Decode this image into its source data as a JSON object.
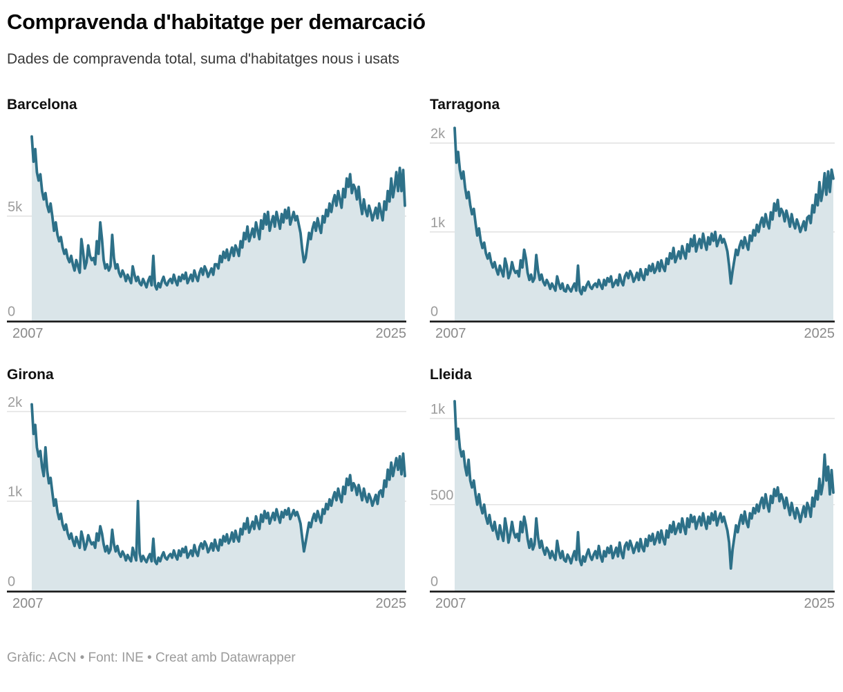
{
  "header": {
    "title": "Compravenda d'habitatge per demarcació",
    "subtitle": "Dades de compravenda total, suma d'habitatges nous i usats"
  },
  "footer": {
    "text": "Gràfic: ACN • Font: INE • Creat amb Datawrapper"
  },
  "colors": {
    "line": "#2d7088",
    "fill": "#dae5e9",
    "grid": "#dedede",
    "baseline": "#161616",
    "tick_label": "#9c9c9c",
    "x_label": "#8a8a8a"
  },
  "chart_data": [
    {
      "type": "area",
      "title": "Barcelona",
      "frequency": "monthly",
      "x_start": "2007-01",
      "x_end": "2025-03",
      "x_tick_labels": [
        "2007",
        "2025"
      ],
      "ylim": [
        0,
        9550
      ],
      "yticks": [
        {
          "value": 0,
          "label": "0"
        },
        {
          "value": 5000,
          "label": "5k"
        }
      ],
      "values": [
        8800,
        7600,
        8200,
        7100,
        6700,
        7000,
        6200,
        5800,
        6100,
        5500,
        5200,
        5600,
        5000,
        4300,
        4700,
        4100,
        3800,
        4000,
        3500,
        3200,
        3400,
        3000,
        2800,
        3100,
        2700,
        2400,
        2900,
        2600,
        2300,
        3900,
        3300,
        2500,
        2800,
        3600,
        3100,
        2900,
        3000,
        2700,
        3800,
        3200,
        4700,
        3900,
        2900,
        2500,
        2700,
        2400,
        2600,
        4100,
        3000,
        2500,
        2700,
        2300,
        2100,
        2400,
        2200,
        1900,
        2200,
        2000,
        1800,
        2600,
        2200,
        1900,
        2100,
        1800,
        1700,
        2000,
        1800,
        1600,
        1900,
        2100,
        1700,
        3100,
        1700,
        1500,
        1800,
        1600,
        1900,
        2100,
        1800,
        1700,
        1900,
        2000,
        1800,
        2200,
        1900,
        1700,
        2100,
        1900,
        2200,
        2000,
        2300,
        1800,
        2000,
        2200,
        1900,
        2400,
        2100,
        1900,
        2300,
        2500,
        2200,
        2600,
        2400,
        2100,
        2300,
        2500,
        2200,
        2700,
        2700,
        2500,
        3100,
        2800,
        3300,
        3000,
        3400,
        2900,
        3200,
        3500,
        3100,
        3600,
        3400,
        3100,
        3800,
        3500,
        4200,
        3900,
        4500,
        3800,
        4100,
        4400,
        4000,
        4700,
        4300,
        3900,
        4800,
        4400,
        5100,
        4600,
        5200,
        4300,
        4700,
        5000,
        4500,
        5200,
        4800,
        4400,
        5100,
        4700,
        5300,
        4900,
        5400,
        4600,
        4900,
        5200,
        4800,
        5000,
        4600,
        4200,
        3400,
        2800,
        3000,
        3600,
        4200,
        3900,
        4400,
        4700,
        4300,
        4900,
        4500,
        4200,
        5000,
        4700,
        5300,
        5000,
        5600,
        5200,
        5700,
        6000,
        5500,
        6200,
        5800,
        5400,
        6300,
        5900,
        6800,
        6400,
        7000,
        6100,
        6500,
        6300,
        5800,
        6400,
        5600,
        5100,
        5800,
        5300,
        5000,
        5500,
        5200,
        4800,
        5100,
        5400,
        4900,
        5600,
        5200,
        4800,
        5700,
        5300,
        6200,
        5700,
        6800,
        5900,
        6400,
        7100,
        6200,
        7300,
        6200,
        7200,
        5500
      ]
    },
    {
      "type": "area",
      "title": "Tarragona",
      "frequency": "monthly",
      "x_start": "2007-01",
      "x_end": "2025-03",
      "x_tick_labels": [
        "2007",
        "2025"
      ],
      "ylim": [
        0,
        2250
      ],
      "yticks": [
        {
          "value": 0,
          "label": "0"
        },
        {
          "value": 1000,
          "label": "1k"
        },
        {
          "value": 2000,
          "label": "2k"
        }
      ],
      "values": [
        2170,
        1780,
        1900,
        1700,
        1600,
        1680,
        1500,
        1380,
        1450,
        1300,
        1200,
        1260,
        1100,
        960,
        1040,
        900,
        820,
        880,
        760,
        700,
        760,
        660,
        600,
        660,
        580,
        520,
        620,
        560,
        500,
        700,
        620,
        480,
        540,
        660,
        580,
        540,
        560,
        500,
        680,
        600,
        800,
        700,
        540,
        460,
        520,
        440,
        480,
        740,
        560,
        460,
        520,
        440,
        400,
        460,
        420,
        360,
        420,
        380,
        340,
        500,
        420,
        360,
        420,
        340,
        330,
        400,
        360,
        330,
        380,
        420,
        340,
        620,
        340,
        300,
        380,
        340,
        400,
        440,
        380,
        360,
        400,
        420,
        380,
        460,
        400,
        360,
        460,
        400,
        480,
        440,
        500,
        380,
        420,
        460,
        400,
        520,
        440,
        400,
        500,
        540,
        480,
        560,
        520,
        440,
        480,
        540,
        460,
        580,
        500,
        460,
        580,
        520,
        620,
        560,
        640,
        540,
        580,
        660,
        560,
        680,
        600,
        560,
        700,
        640,
        760,
        700,
        820,
        660,
        720,
        780,
        700,
        840,
        760,
        700,
        860,
        780,
        920,
        840,
        960,
        780,
        860,
        920,
        820,
        980,
        880,
        800,
        940,
        860,
        980,
        900,
        1000,
        840,
        900,
        960,
        880,
        920,
        860,
        780,
        620,
        420,
        560,
        680,
        800,
        740,
        840,
        900,
        820,
        940,
        860,
        800,
        960,
        900,
        1020,
        960,
        1080,
        1000,
        1100,
        1160,
        1060,
        1200,
        1100,
        1040,
        1220,
        1140,
        1320,
        1240,
        1360,
        1180,
        1260,
        1220,
        1120,
        1240,
        1160,
        1060,
        1200,
        1100,
        1040,
        1140,
        1080,
        1000,
        1060,
        1120,
        1020,
        1160,
        1180,
        1100,
        1300,
        1220,
        1420,
        1300,
        1560,
        1350,
        1460,
        1660,
        1420,
        1680,
        1450,
        1700,
        1600
      ]
    },
    {
      "type": "area",
      "title": "Girona",
      "frequency": "monthly",
      "x_start": "2007-01",
      "x_end": "2025-03",
      "x_tick_labels": [
        "2007",
        "2025"
      ],
      "ylim": [
        0,
        2230
      ],
      "yticks": [
        {
          "value": 0,
          "label": "0"
        },
        {
          "value": 1000,
          "label": "1k"
        },
        {
          "value": 2000,
          "label": "2k"
        }
      ],
      "values": [
        2080,
        1750,
        1850,
        1600,
        1500,
        1560,
        1380,
        1280,
        1600,
        1340,
        1200,
        1260,
        1100,
        950,
        1020,
        880,
        800,
        860,
        740,
        680,
        740,
        640,
        580,
        640,
        560,
        500,
        600,
        540,
        480,
        660,
        580,
        460,
        520,
        620,
        560,
        520,
        540,
        480,
        640,
        560,
        720,
        640,
        520,
        440,
        500,
        420,
        460,
        680,
        520,
        440,
        500,
        420,
        380,
        440,
        400,
        340,
        400,
        360,
        330,
        480,
        400,
        340,
        1000,
        420,
        330,
        390,
        350,
        320,
        370,
        410,
        330,
        580,
        330,
        300,
        370,
        330,
        390,
        430,
        370,
        350,
        390,
        410,
        370,
        450,
        390,
        350,
        450,
        390,
        470,
        430,
        490,
        370,
        410,
        450,
        390,
        510,
        430,
        390,
        490,
        530,
        470,
        550,
        510,
        430,
        470,
        530,
        450,
        570,
        490,
        450,
        570,
        510,
        610,
        550,
        630,
        530,
        570,
        650,
        550,
        670,
        590,
        550,
        690,
        630,
        750,
        690,
        810,
        650,
        710,
        770,
        690,
        830,
        750,
        690,
        850,
        770,
        890,
        810,
        870,
        750,
        810,
        870,
        790,
        910,
        830,
        760,
        880,
        820,
        900,
        850,
        920,
        800,
        850,
        900,
        840,
        880,
        820,
        750,
        590,
        440,
        540,
        650,
        760,
        710,
        800,
        860,
        780,
        890,
        820,
        760,
        910,
        860,
        970,
        910,
        1020,
        950,
        1040,
        1100,
        1010,
        1140,
        1050,
        990,
        1160,
        1080,
        1250,
        1180,
        1290,
        1120,
        1200,
        1160,
        1070,
        1180,
        1100,
        1010,
        1140,
        1050,
        990,
        1080,
        1030,
        950,
        1010,
        1070,
        970,
        1100,
        1120,
        1050,
        1230,
        1160,
        1350,
        1240,
        1430,
        1280,
        1380,
        1480,
        1350,
        1500,
        1300,
        1530,
        1280
      ]
    },
    {
      "type": "area",
      "title": "Lleida",
      "frequency": "monthly",
      "x_start": "2007-01",
      "x_end": "2025-03",
      "x_tick_labels": [
        "2007",
        "2025"
      ],
      "ylim": [
        0,
        1160
      ],
      "yticks": [
        {
          "value": 0,
          "label": "0"
        },
        {
          "value": 500,
          "label": "500"
        },
        {
          "value": 1000,
          "label": "1k"
        }
      ],
      "values": [
        1100,
        880,
        940,
        830,
        780,
        810,
        720,
        670,
        760,
        640,
        600,
        640,
        560,
        500,
        560,
        490,
        450,
        500,
        430,
        390,
        440,
        380,
        350,
        400,
        340,
        300,
        380,
        330,
        290,
        420,
        360,
        280,
        330,
        400,
        340,
        310,
        330,
        290,
        400,
        340,
        430,
        380,
        300,
        250,
        300,
        240,
        270,
        420,
        310,
        250,
        290,
        240,
        210,
        250,
        230,
        190,
        230,
        200,
        180,
        290,
        230,
        190,
        230,
        180,
        170,
        210,
        190,
        160,
        200,
        230,
        180,
        340,
        180,
        150,
        200,
        170,
        210,
        240,
        200,
        180,
        210,
        230,
        190,
        260,
        200,
        170,
        230,
        200,
        250,
        220,
        260,
        190,
        220,
        250,
        200,
        280,
        220,
        190,
        260,
        280,
        240,
        290,
        260,
        220,
        250,
        280,
        230,
        300,
        250,
        230,
        300,
        260,
        320,
        290,
        330,
        270,
        300,
        340,
        280,
        350,
        300,
        270,
        350,
        310,
        380,
        340,
        400,
        330,
        360,
        390,
        340,
        420,
        370,
        330,
        420,
        370,
        440,
        400,
        430,
        360,
        400,
        430,
        380,
        450,
        400,
        360,
        430,
        390,
        450,
        410,
        460,
        380,
        420,
        450,
        400,
        430,
        390,
        350,
        280,
        130,
        240,
        310,
        380,
        340,
        400,
        440,
        390,
        460,
        400,
        370,
        450,
        420,
        480,
        450,
        500,
        460,
        510,
        540,
        480,
        560,
        500,
        460,
        550,
        510,
        590,
        550,
        600,
        520,
        560,
        530,
        480,
        540,
        490,
        440,
        510,
        460,
        420,
        480,
        450,
        400,
        450,
        490,
        430,
        510,
        480,
        430,
        540,
        490,
        580,
        530,
        650,
        560,
        620,
        790,
        640,
        720,
        560,
        700,
        570
      ]
    }
  ]
}
